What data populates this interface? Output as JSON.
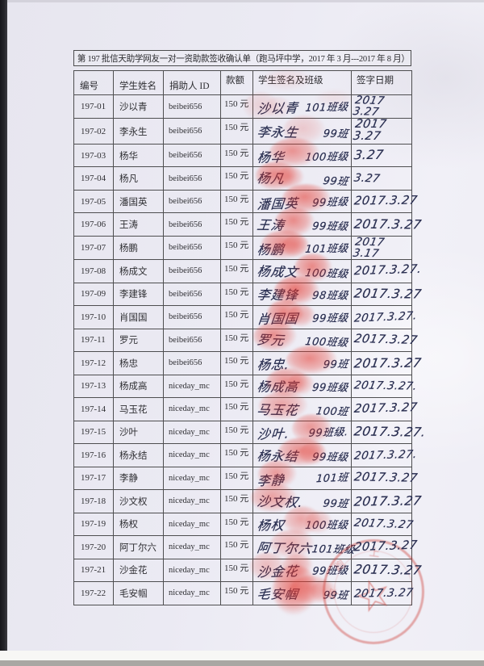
{
  "page": {
    "background_color": "#a9a7a3",
    "paper_color": "#ebeaf3",
    "ink_color": "#2b3052",
    "stamp_color": "#ce3a32",
    "table_line_color": "#4e4e50"
  },
  "document": {
    "title": "第 197 批信天助学网友一对一资助款签收确认单（跑马坪中学，2017 年 3 月---2017 年 8 月）",
    "columns": [
      "编号",
      "学生姓名",
      "捐助人 ID",
      "款额",
      "学生签名及班级",
      "签字日期"
    ],
    "rows": [
      {
        "id": "197-01",
        "name": "沙以青",
        "donor": "beibei656",
        "amount": "150 元",
        "sig": "沙以青",
        "cls": "101班级",
        "date": "2017 3.27"
      },
      {
        "id": "197-02",
        "name": "李永生",
        "donor": "beibei656",
        "amount": "150 元",
        "sig": "李永生",
        "cls": "99班",
        "date": "2017\n3.27"
      },
      {
        "id": "197-03",
        "name": "杨华",
        "donor": "beibei656",
        "amount": "150 元",
        "sig": "杨华",
        "cls": "100班级",
        "date": "3.27"
      },
      {
        "id": "197-04",
        "name": "杨凡",
        "donor": "beibei656",
        "amount": "150 元",
        "sig": "杨凡",
        "cls": "99班",
        "date": "3.27"
      },
      {
        "id": "197-05",
        "name": "潘国英",
        "donor": "beibei656",
        "amount": "150 元",
        "sig": "潘国英",
        "cls": "99班级",
        "date": "2017.3.27"
      },
      {
        "id": "197-06",
        "name": "王涛",
        "donor": "beibei656",
        "amount": "150 元",
        "sig": "王涛",
        "cls": "99班级",
        "date": "2017.3.27"
      },
      {
        "id": "197-07",
        "name": "杨鹏",
        "donor": "beibei656",
        "amount": "150 元",
        "sig": "杨鹏",
        "cls": "101班级",
        "date": "2017\n3.17"
      },
      {
        "id": "197-08",
        "name": "杨成文",
        "donor": "beibei656",
        "amount": "150 元",
        "sig": "杨成文",
        "cls": "100班级",
        "date": "2017.3.27."
      },
      {
        "id": "197-09",
        "name": "李建锋",
        "donor": "beibei656",
        "amount": "150 元",
        "sig": "李建锋",
        "cls": "98班级",
        "date": "2017.3.27"
      },
      {
        "id": "197-10",
        "name": "肖国国",
        "donor": "beibei656",
        "amount": "150 元",
        "sig": "肖国国",
        "cls": "99班级",
        "date": "2017.3.27."
      },
      {
        "id": "197-11",
        "name": "罗元",
        "donor": "beibei656",
        "amount": "150 元",
        "sig": "罗元",
        "cls": "100班级",
        "date": "2017.3.27"
      },
      {
        "id": "197-12",
        "name": "杨忠",
        "donor": "beibei656",
        "amount": "150 元",
        "sig": "杨忠.",
        "cls": "99班",
        "date": "2017.3.27"
      },
      {
        "id": "197-13",
        "name": "杨成高",
        "donor": "niceday_mc",
        "amount": "150 元",
        "sig": "杨成高",
        "cls": "99班级",
        "date": "2017.3.27."
      },
      {
        "id": "197-14",
        "name": "马玉花",
        "donor": "niceday_mc",
        "amount": "150 元",
        "sig": "马玉花",
        "cls": "100班",
        "date": "2017.3.27"
      },
      {
        "id": "197-15",
        "name": "沙叶",
        "donor": "niceday_mc",
        "amount": "150 元",
        "sig": "沙叶.",
        "cls": "99班级.",
        "date": "2017.3.27."
      },
      {
        "id": "197-16",
        "name": "杨永结",
        "donor": "niceday_mc",
        "amount": "150 元",
        "sig": "杨永结",
        "cls": "99班级",
        "date": "2017.3.27."
      },
      {
        "id": "197-17",
        "name": "李静",
        "donor": "niceday_mc",
        "amount": "150 元",
        "sig": "李静",
        "cls": "101班",
        "date": "2017.3.27"
      },
      {
        "id": "197-18",
        "name": "沙文权",
        "donor": "niceday_mc",
        "amount": "150 元",
        "sig": "沙文权.",
        "cls": "99班",
        "date": "2017.3.27"
      },
      {
        "id": "197-19",
        "name": "杨权",
        "donor": "niceday_mc",
        "amount": "150 元",
        "sig": "杨权",
        "cls": "100班级",
        "date": "2017.3.27"
      },
      {
        "id": "197-20",
        "name": "阿丁尔六",
        "donor": "niceday_mc",
        "amount": "150 元",
        "sig": "阿丁尔六",
        "cls": "101班级",
        "date": "2017.3.27"
      },
      {
        "id": "197-21",
        "name": "沙金花",
        "donor": "niceday_mc",
        "amount": "150 元",
        "sig": "沙金花",
        "cls": "99班级",
        "date": "2017.3.27"
      },
      {
        "id": "197-22",
        "name": "毛安帼",
        "donor": "niceday_mc",
        "amount": "150 元",
        "sig": "毛安帼",
        "cls": "99班",
        "date": "2017.3.27"
      }
    ],
    "seal": {
      "shape": "round-official-stamp-with-star",
      "star_glyph": "☆",
      "rim_glyphs": [
        "上",
        "跑",
        "坪"
      ]
    }
  }
}
